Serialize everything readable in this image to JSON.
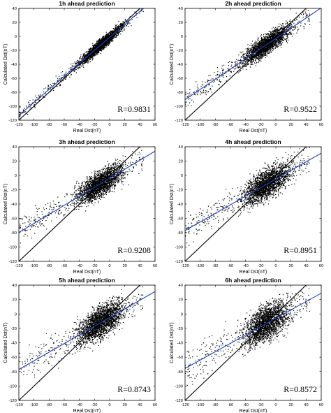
{
  "chart_data": [
    {
      "type": "scatter",
      "title": "1h ahead prediction",
      "xlabel": "Real Dst(nT)",
      "ylabel": "Calculated Dst(nT)",
      "xlim": [
        -120,
        60
      ],
      "ylim": [
        -120,
        40
      ],
      "xticks": [
        -120,
        -100,
        -80,
        -60,
        -40,
        -20,
        0,
        20,
        40,
        60
      ],
      "yticks": [
        -120,
        -100,
        -80,
        -60,
        -40,
        -20,
        0,
        20,
        40
      ],
      "annotation": "R=0.9831",
      "grid": false,
      "series": [
        {
          "kind": "points",
          "color": "#000000",
          "x_range": [
            -120,
            45
          ],
          "count": 2400,
          "spread": 4
        },
        {
          "kind": "line",
          "color": "#000000",
          "slope": 1,
          "intercept": 0
        },
        {
          "kind": "line",
          "color": "#1f3fbf",
          "slope": 0.93,
          "intercept": -1.5
        }
      ]
    },
    {
      "type": "scatter",
      "title": "2h ahead prediction",
      "xlabel": "Real Dst(nT)",
      "ylabel": "Calculated Dst(nT)",
      "xlim": [
        -120,
        60
      ],
      "ylim": [
        -120,
        40
      ],
      "xticks": [
        -120,
        -100,
        -80,
        -60,
        -40,
        -20,
        0,
        20,
        40,
        60
      ],
      "yticks": [
        -120,
        -100,
        -80,
        -60,
        -40,
        -20,
        0,
        20,
        40
      ],
      "annotation": "R=0.9522",
      "grid": false,
      "series": [
        {
          "kind": "points",
          "color": "#000000",
          "x_range": [
            -120,
            45
          ],
          "count": 2400,
          "spread": 7
        },
        {
          "kind": "line",
          "color": "#000000",
          "slope": 1,
          "intercept": 0
        },
        {
          "kind": "line",
          "color": "#1f3fbf",
          "slope": 0.73,
          "intercept": -3
        }
      ]
    },
    {
      "type": "scatter",
      "title": "3h ahead prediction",
      "xlabel": "Real Dst(nT)",
      "ylabel": "Calculated Dst(nT)",
      "xlim": [
        -120,
        60
      ],
      "ylim": [
        -120,
        40
      ],
      "xticks": [
        -120,
        -100,
        -80,
        -60,
        -40,
        -20,
        0,
        20,
        40,
        60
      ],
      "yticks": [
        -120,
        -100,
        -80,
        -60,
        -40,
        -20,
        0,
        20,
        40
      ],
      "annotation": "R=0.9208",
      "grid": false,
      "series": [
        {
          "kind": "points",
          "color": "#000000",
          "x_range": [
            -120,
            45
          ],
          "count": 2400,
          "spread": 9
        },
        {
          "kind": "line",
          "color": "#000000",
          "slope": 1,
          "intercept": 0
        },
        {
          "kind": "line",
          "color": "#1f3fbf",
          "slope": 0.63,
          "intercept": -4
        }
      ]
    },
    {
      "type": "scatter",
      "title": "4h ahead prediction",
      "xlabel": "Real Dst(nT)",
      "ylabel": "Calculated Dst(nT)",
      "xlim": [
        -120,
        60
      ],
      "ylim": [
        -120,
        40
      ],
      "xticks": [
        -120,
        -100,
        -80,
        -60,
        -40,
        -20,
        0,
        20,
        40,
        60
      ],
      "yticks": [
        -120,
        -100,
        -80,
        -60,
        -40,
        -20,
        0,
        20,
        40
      ],
      "annotation": "R=0.8951",
      "grid": false,
      "series": [
        {
          "kind": "points",
          "color": "#000000",
          "x_range": [
            -120,
            45
          ],
          "count": 2400,
          "spread": 10
        },
        {
          "kind": "line",
          "color": "#000000",
          "slope": 1,
          "intercept": 0
        },
        {
          "kind": "line",
          "color": "#1f3fbf",
          "slope": 0.6,
          "intercept": -5
        }
      ]
    },
    {
      "type": "scatter",
      "title": "5h ahead prediction",
      "xlabel": "Real Dst(nT)",
      "ylabel": "Calculated Dst(nT)",
      "xlim": [
        -120,
        60
      ],
      "ylim": [
        -120,
        40
      ],
      "xticks": [
        -120,
        -100,
        -80,
        -60,
        -40,
        -20,
        0,
        20,
        40,
        60
      ],
      "yticks": [
        -120,
        -100,
        -80,
        -60,
        -40,
        -20,
        0,
        20,
        40
      ],
      "annotation": "R=0.8743",
      "grid": false,
      "series": [
        {
          "kind": "points",
          "color": "#000000",
          "x_range": [
            -120,
            45
          ],
          "count": 2400,
          "spread": 11
        },
        {
          "kind": "line",
          "color": "#000000",
          "slope": 1,
          "intercept": 0
        },
        {
          "kind": "line",
          "color": "#1f3fbf",
          "slope": 0.6,
          "intercept": -5
        }
      ]
    },
    {
      "type": "scatter",
      "title": "6h ahead prediction",
      "xlabel": "Real Dst(nT)",
      "ylabel": "Calculated Dst(nT)",
      "xlim": [
        -120,
        60
      ],
      "ylim": [
        -120,
        40
      ],
      "xticks": [
        -120,
        -100,
        -80,
        -60,
        -40,
        -20,
        0,
        20,
        40,
        60
      ],
      "yticks": [
        -120,
        -100,
        -80,
        -60,
        -40,
        -20,
        0,
        20,
        40
      ],
      "annotation": "R=0.8572",
      "grid": false,
      "series": [
        {
          "kind": "points",
          "color": "#000000",
          "x_range": [
            -120,
            45
          ],
          "count": 2400,
          "spread": 12
        },
        {
          "kind": "line",
          "color": "#000000",
          "slope": 1,
          "intercept": 0
        },
        {
          "kind": "line",
          "color": "#1f3fbf",
          "slope": 0.58,
          "intercept": -6
        }
      ]
    }
  ]
}
